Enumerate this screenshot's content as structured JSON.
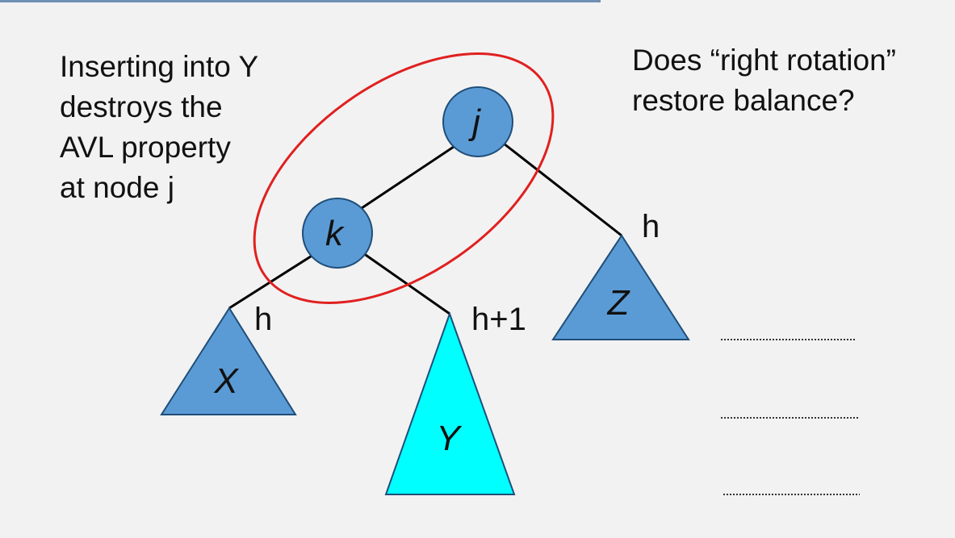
{
  "slide": {
    "caption_left": "Inserting into Y\ndestroys the\nAVL property\nat node j",
    "caption_right": "Does “right rotation”\nrestore balance?"
  },
  "diagram": {
    "nodes": {
      "j": "j",
      "k": "k"
    },
    "subtrees": {
      "x": "X",
      "y": "Y",
      "z": "Z"
    },
    "heights": {
      "x": "h",
      "y": "h+1",
      "z": "h"
    }
  },
  "colors": {
    "background": "#f2f2f2",
    "node_fill": "#5b9bd5",
    "subtree_fill": "#5b9bd5",
    "inserted_subtree_fill": "#00ffff",
    "highlight_ellipse": "#e0201f",
    "edge": "#000000",
    "answer_line": "#333333"
  }
}
